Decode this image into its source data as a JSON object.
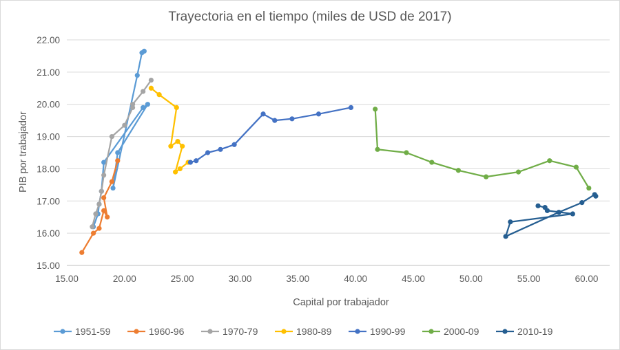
{
  "chart_data": {
    "type": "line",
    "title": "Trayectoria en el tiempo (miles de USD de 2017)",
    "xlabel": "Capital por trabajador",
    "ylabel": "PIB por trabajador",
    "xlim": [
      15,
      62
    ],
    "ylim": [
      15,
      22
    ],
    "xticks": [
      "15.00",
      "20.00",
      "25.00",
      "30.00",
      "35.00",
      "40.00",
      "45.00",
      "50.00",
      "55.00",
      "60.00"
    ],
    "yticks": [
      "15.00",
      "16.00",
      "17.00",
      "18.00",
      "19.00",
      "20.00",
      "21.00",
      "22.00"
    ],
    "grid": "horizontal",
    "legend_position": "bottom",
    "series": [
      {
        "name": "1951-59",
        "color": "#5B9BD5",
        "points": [
          [
            21.7,
            21.65
          ],
          [
            21.5,
            21.6
          ],
          [
            21.1,
            20.9
          ],
          [
            19.0,
            17.4
          ],
          [
            19.4,
            18.5
          ],
          [
            22.0,
            20.0
          ],
          [
            21.6,
            19.9
          ],
          [
            18.2,
            18.2
          ],
          [
            18.0,
            17.3
          ],
          [
            17.8,
            16.9
          ],
          [
            17.7,
            16.6
          ],
          [
            17.3,
            16.2
          ]
        ]
      },
      {
        "name": "1960-96",
        "color": "#ED7D31",
        "points": [
          [
            16.3,
            15.4
          ],
          [
            17.3,
            16.0
          ],
          [
            17.8,
            16.15
          ],
          [
            18.2,
            16.7
          ],
          [
            18.5,
            16.5
          ],
          [
            18.2,
            17.1
          ],
          [
            18.9,
            17.6
          ],
          [
            19.4,
            18.25
          ]
        ]
      },
      {
        "name": "1970-79",
        "color": "#A5A5A5",
        "points": [
          [
            17.2,
            16.2
          ],
          [
            17.5,
            16.6
          ],
          [
            17.8,
            16.9
          ],
          [
            18.0,
            17.3
          ],
          [
            18.2,
            17.8
          ],
          [
            18.9,
            19.0
          ],
          [
            20.0,
            19.35
          ],
          [
            20.7,
            19.9
          ],
          [
            20.7,
            20.0
          ],
          [
            21.6,
            20.4
          ],
          [
            22.3,
            20.75
          ]
        ]
      },
      {
        "name": "1980-89",
        "color": "#FFC000",
        "points": [
          [
            22.3,
            20.5
          ],
          [
            23.0,
            20.3
          ],
          [
            24.5,
            19.9
          ],
          [
            24.0,
            18.7
          ],
          [
            24.6,
            18.85
          ],
          [
            25.0,
            18.7
          ],
          [
            24.4,
            17.9
          ],
          [
            24.8,
            18.0
          ],
          [
            25.5,
            18.2
          ]
        ]
      },
      {
        "name": "1990-99",
        "color": "#4472C4",
        "points": [
          [
            25.7,
            18.2
          ],
          [
            26.2,
            18.25
          ],
          [
            27.2,
            18.5
          ],
          [
            28.3,
            18.6
          ],
          [
            29.5,
            18.75
          ],
          [
            32.0,
            19.7
          ],
          [
            33.0,
            19.5
          ],
          [
            34.5,
            19.55
          ],
          [
            36.8,
            19.7
          ],
          [
            39.6,
            19.9
          ]
        ]
      },
      {
        "name": "2000-09",
        "color": "#70AD47",
        "points": [
          [
            41.7,
            19.85
          ],
          [
            41.9,
            18.6
          ],
          [
            44.4,
            18.5
          ],
          [
            46.6,
            18.2
          ],
          [
            48.9,
            17.95
          ],
          [
            51.3,
            17.75
          ],
          [
            54.1,
            17.9
          ],
          [
            56.8,
            18.25
          ],
          [
            59.1,
            18.05
          ],
          [
            60.2,
            17.4
          ]
        ]
      },
      {
        "name": "2010-19",
        "color": "#255E91",
        "points": [
          [
            60.8,
            17.15
          ],
          [
            60.7,
            17.2
          ],
          [
            59.6,
            16.95
          ],
          [
            57.6,
            16.65
          ],
          [
            53.0,
            15.9
          ],
          [
            53.4,
            16.35
          ],
          [
            58.8,
            16.6
          ],
          [
            56.6,
            16.7
          ],
          [
            56.4,
            16.8
          ],
          [
            55.8,
            16.85
          ]
        ]
      }
    ]
  }
}
